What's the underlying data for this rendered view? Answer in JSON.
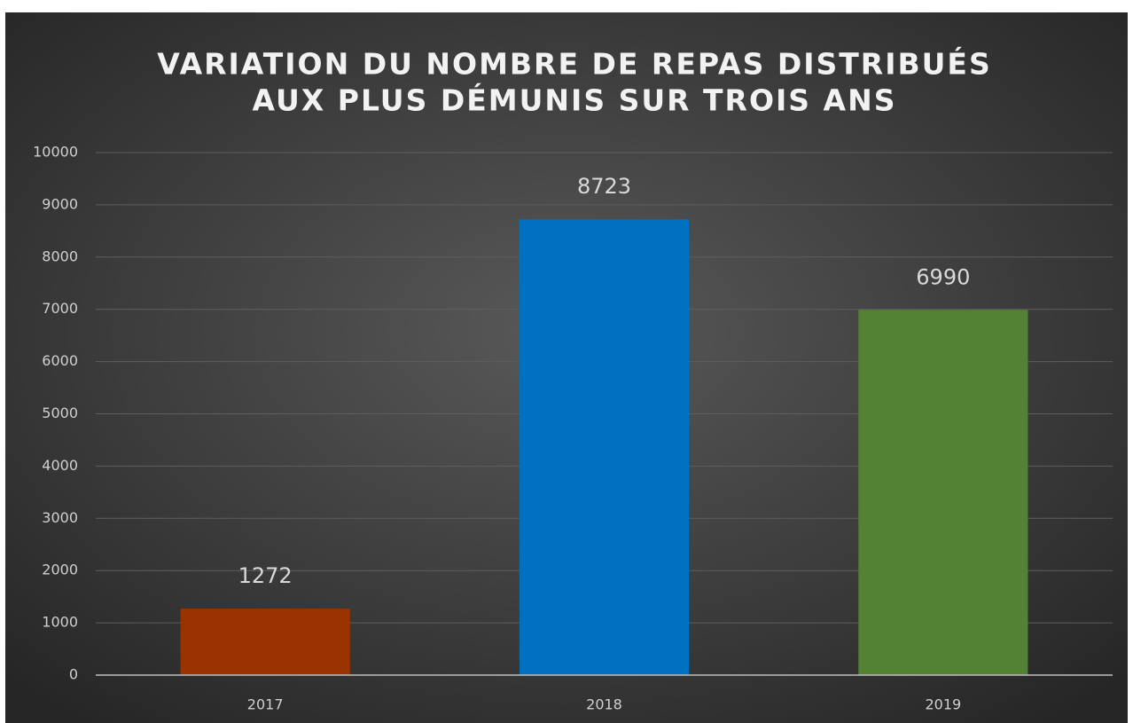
{
  "chart_data": {
    "type": "bar",
    "title": [
      "VARIATION DU NOMBRE DE REPAS DISTRIBUÉS",
      "AUX PLUS DÉMUNIS SUR TROIS ANS"
    ],
    "categories": [
      "2017",
      "2018",
      "2019"
    ],
    "values": [
      1272,
      8723,
      6990
    ],
    "colors": [
      "#9a3300",
      "#0070c0",
      "#548235"
    ],
    "ylim": [
      0,
      10000
    ],
    "yticks": [
      0,
      1000,
      2000,
      3000,
      4000,
      5000,
      6000,
      7000,
      8000,
      9000,
      10000
    ],
    "grid": true
  }
}
